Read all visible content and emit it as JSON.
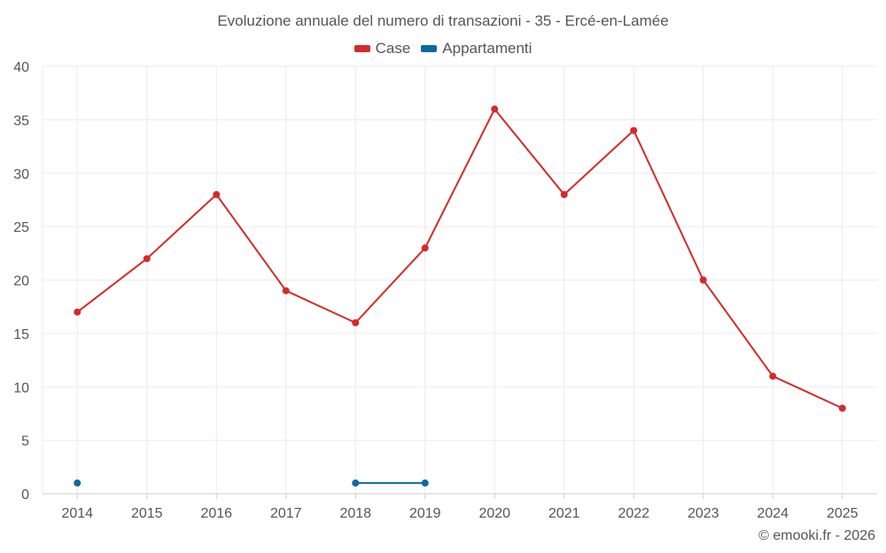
{
  "chart_data": {
    "type": "line",
    "title": "Evoluzione annuale del numero di transazioni - 35 - Ercé-en-Lamée",
    "categories": [
      "2014",
      "2015",
      "2016",
      "2017",
      "2018",
      "2019",
      "2020",
      "2021",
      "2022",
      "2023",
      "2024",
      "2025"
    ],
    "series": [
      {
        "name": "Case",
        "color": "#d42a2a",
        "values": [
          17,
          22,
          28,
          19,
          16,
          23,
          36,
          28,
          34,
          20,
          11,
          8
        ]
      },
      {
        "name": "Appartamenti",
        "color": "#0b6aa2",
        "values": [
          1,
          null,
          null,
          null,
          1,
          1,
          null,
          null,
          null,
          null,
          null,
          null
        ]
      }
    ],
    "yticks": [
      0,
      5,
      10,
      15,
      20,
      25,
      30,
      35,
      40
    ],
    "ylim": [
      0,
      40
    ],
    "xlabel": "",
    "ylabel": "",
    "grid": true,
    "legend_position": "top-center"
  },
  "credit": "© emooki.fr - 2026"
}
